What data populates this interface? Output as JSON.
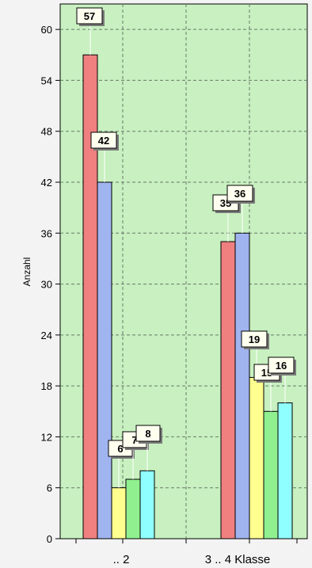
{
  "chart_data": {
    "type": "bar",
    "ylabel": "Anzahl",
    "xlabel": "",
    "ylim": [
      0,
      63
    ],
    "yticks": [
      "0",
      "6",
      "12",
      "18",
      "24",
      "30",
      "36",
      "42",
      "48",
      "54",
      "60"
    ],
    "categories": [
      ".. 2",
      "3 .. 4 Klasse"
    ],
    "series": [
      {
        "color": "#f08080",
        "values": [
          57,
          35
        ]
      },
      {
        "color": "#a0b4f0",
        "values": [
          42,
          36
        ]
      },
      {
        "color": "#ffff90",
        "values": [
          6,
          19
        ]
      },
      {
        "color": "#90f090",
        "values": [
          7,
          15
        ]
      },
      {
        "color": "#90ffff",
        "values": [
          8,
          16
        ]
      }
    ],
    "data_labels": [
      [
        "57",
        "42",
        "6",
        "7",
        "8"
      ],
      [
        "35",
        "36",
        "19",
        "15",
        "16"
      ]
    ],
    "grid": true,
    "legend": "none",
    "plot_background": "#c8f0c0"
  }
}
